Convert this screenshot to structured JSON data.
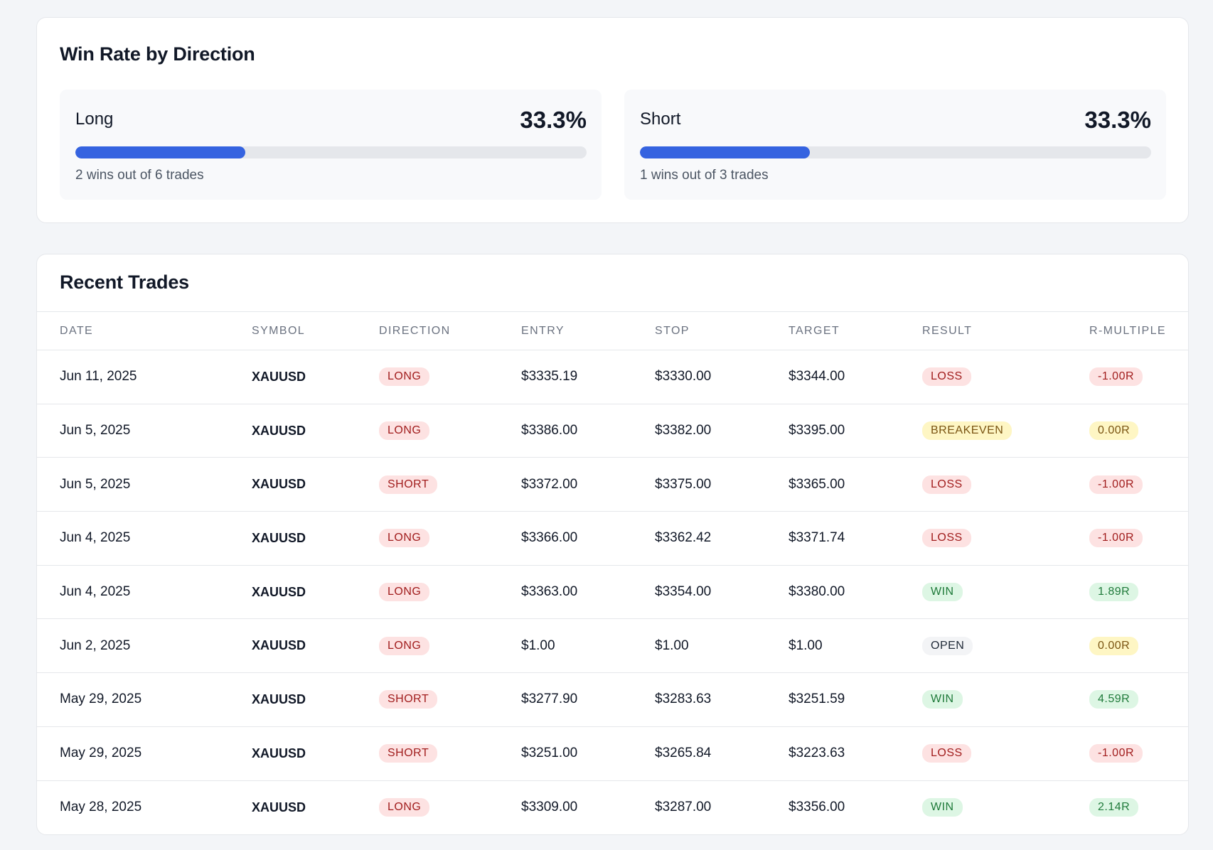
{
  "win_rate": {
    "title": "Win Rate by Direction",
    "long": {
      "label": "Long",
      "rate": "33.3%",
      "fill_percent": 33.3,
      "summary": "2 wins out of 6 trades"
    },
    "short": {
      "label": "Short",
      "rate": "33.3%",
      "fill_percent": 33.3,
      "summary": "1 wins out of 3 trades"
    },
    "bar_color": "#3563e0"
  },
  "trades": {
    "title": "Recent Trades",
    "columns": [
      "DATE",
      "SYMBOL",
      "DIRECTION",
      "ENTRY",
      "STOP",
      "TARGET",
      "RESULT",
      "R-MULTIPLE"
    ],
    "rows": [
      {
        "date": "Jun 11, 2025",
        "symbol": "XAUUSD",
        "direction": "LONG",
        "entry": "$3335.19",
        "stop": "$3330.00",
        "target": "$3344.00",
        "result": "LOSS",
        "r_multiple": "-1.00R"
      },
      {
        "date": "Jun 5, 2025",
        "symbol": "XAUUSD",
        "direction": "LONG",
        "entry": "$3386.00",
        "stop": "$3382.00",
        "target": "$3395.00",
        "result": "BREAKEVEN",
        "r_multiple": "0.00R"
      },
      {
        "date": "Jun 5, 2025",
        "symbol": "XAUUSD",
        "direction": "SHORT",
        "entry": "$3372.00",
        "stop": "$3375.00",
        "target": "$3365.00",
        "result": "LOSS",
        "r_multiple": "-1.00R"
      },
      {
        "date": "Jun 4, 2025",
        "symbol": "XAUUSD",
        "direction": "LONG",
        "entry": "$3366.00",
        "stop": "$3362.42",
        "target": "$3371.74",
        "result": "LOSS",
        "r_multiple": "-1.00R"
      },
      {
        "date": "Jun 4, 2025",
        "symbol": "XAUUSD",
        "direction": "LONG",
        "entry": "$3363.00",
        "stop": "$3354.00",
        "target": "$3380.00",
        "result": "WIN",
        "r_multiple": "1.89R"
      },
      {
        "date": "Jun 2, 2025",
        "symbol": "XAUUSD",
        "direction": "LONG",
        "entry": "$1.00",
        "stop": "$1.00",
        "target": "$1.00",
        "result": "OPEN",
        "r_multiple": "0.00R"
      },
      {
        "date": "May 29, 2025",
        "symbol": "XAUUSD",
        "direction": "SHORT",
        "entry": "$3277.90",
        "stop": "$3283.63",
        "target": "$3251.59",
        "result": "WIN",
        "r_multiple": "4.59R"
      },
      {
        "date": "May 29, 2025",
        "symbol": "XAUUSD",
        "direction": "SHORT",
        "entry": "$3251.00",
        "stop": "$3265.84",
        "target": "$3223.63",
        "result": "LOSS",
        "r_multiple": "-1.00R"
      },
      {
        "date": "May 28, 2025",
        "symbol": "XAUUSD",
        "direction": "LONG",
        "entry": "$3309.00",
        "stop": "$3287.00",
        "target": "$3356.00",
        "result": "WIN",
        "r_multiple": "2.14R"
      }
    ]
  },
  "badge_colors": {
    "red_bg": "#fde2e2",
    "red_text": "#a11d1d",
    "yellow_bg": "#fef6c4",
    "yellow_text": "#7a5412",
    "green_bg": "#ddf6e4",
    "green_text": "#1f7a3a",
    "gray_bg": "#f3f4f6",
    "gray_text": "#1f2937"
  }
}
